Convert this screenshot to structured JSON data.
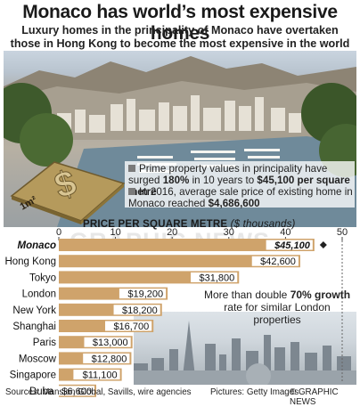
{
  "header": {
    "title": "Monaco has world’s most expensive homes",
    "subtitle": "Luxury homes in the principality of Monaco have overtaken those in Hong Kong to become the most expensive in the world"
  },
  "coin": {
    "label": "1m²",
    "symbol": "$"
  },
  "info": {
    "line1_prefix": "Prime property values in principality have surged",
    "line1_bold": "180%",
    "line1_mid": "in 10 years to",
    "line1_bold2": "$45,100 per square metre",
    "line2_prefix": "In 2016, average sale price of existing home in Monaco reached",
    "line2_bold": "$4,686,600"
  },
  "watermark": "GRAPHIC NEWS",
  "annotation": {
    "prefix": "More than double",
    "bold": "70% growth",
    "suffix": "rate for similar London properties"
  },
  "footer": {
    "sources": "Sources: Mansion Global, Savills, wire agencies",
    "pictures": "Pictures: Getty Images",
    "credit": "© GRAPHIC NEWS"
  },
  "colors": {
    "bar": "#cfa36b",
    "highlight_bar": "#cfa36b",
    "label_bg": "#ffffff"
  },
  "chart_data": {
    "type": "bar",
    "orientation": "horizontal",
    "title": "PRICE PER SQUARE METRE",
    "unit": "($ thousands)",
    "xlim": [
      0,
      50
    ],
    "ticks": [
      0,
      10,
      20,
      30,
      40,
      50
    ],
    "categories": [
      "Monaco",
      "Hong Kong",
      "Tokyo",
      "London",
      "New York",
      "Shanghai",
      "Paris",
      "Moscow",
      "Singapore",
      "Dubai"
    ],
    "values": [
      45.1,
      42.6,
      31.8,
      19.2,
      18.2,
      16.7,
      13.0,
      12.8,
      11.1,
      6.6
    ],
    "value_labels": [
      "$45,100",
      "$42,600",
      "$31,800",
      "$19,200",
      "$18,200",
      "$16,700",
      "$13,000",
      "$12,800",
      "$11,100",
      "$6,600"
    ],
    "highlight": "Monaco"
  }
}
